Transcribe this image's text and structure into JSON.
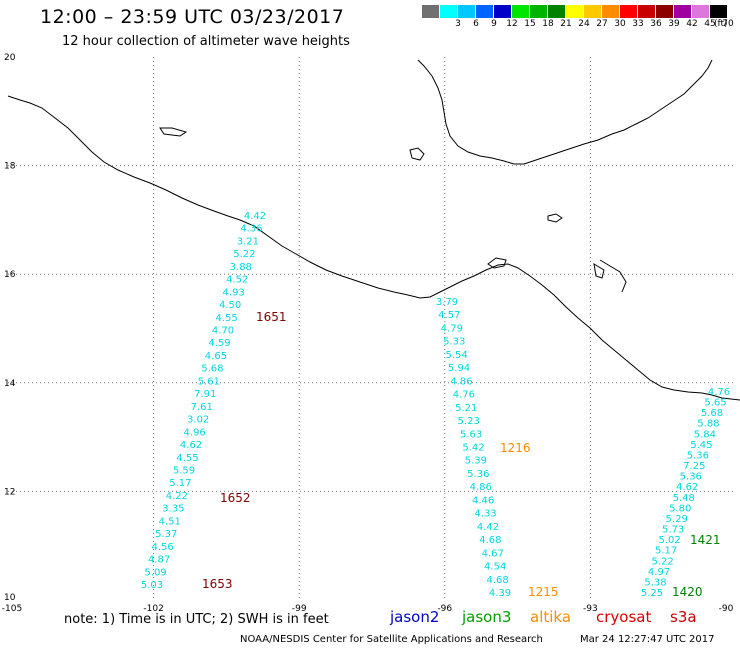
{
  "header": {
    "title": "12:00 – 23:59 UTC 03/23/2017",
    "subtitle": "12 hour collection of altimeter wave heights"
  },
  "legend": {
    "bins": [
      {
        "label": "",
        "color": "#707070"
      },
      {
        "label": "3",
        "color": "#00ffff"
      },
      {
        "label": "6",
        "color": "#00c8ff"
      },
      {
        "label": "9",
        "color": "#0064ff"
      },
      {
        "label": "12",
        "color": "#0000c8"
      },
      {
        "label": "15",
        "color": "#00e600"
      },
      {
        "label": "18",
        "color": "#00b400"
      },
      {
        "label": "21",
        "color": "#008200"
      },
      {
        "label": "24",
        "color": "#ffff00"
      },
      {
        "label": "27",
        "color": "#ffc800"
      },
      {
        "label": "30",
        "color": "#ff8c00"
      },
      {
        "label": "33",
        "color": "#ff0000"
      },
      {
        "label": "36",
        "color": "#c80000"
      },
      {
        "label": "39",
        "color": "#8c0000"
      },
      {
        "label": "42",
        "color": "#a000a0"
      },
      {
        "label": "45",
        "color": "#dc78dc"
      },
      {
        "label": "70",
        "color": "#000000"
      }
    ],
    "unit": "(ft)"
  },
  "map": {
    "lon_range": [
      -105,
      -90
    ],
    "lat_range": [
      10,
      20
    ],
    "lon_ticks": [
      "-105",
      "-102",
      "-99",
      "-96",
      "-93",
      "-90"
    ],
    "lat_ticks": [
      "20",
      "18",
      "16",
      "14",
      "12",
      "10"
    ],
    "track_color": "#00d8e0",
    "tracks": [
      {
        "satellite": "cryosat",
        "pass_times": [
          {
            "text": "1651",
            "color": "#800000"
          },
          {
            "text": "1652",
            "color": "#800000"
          },
          {
            "text": "1653",
            "color": "#800000"
          }
        ],
        "values": [
          "4.42",
          "4.36",
          "3.21",
          "5.22",
          "3.88",
          "4.52",
          "4.93",
          "4.50",
          "4.55",
          "4.70",
          "4.59",
          "4.65",
          "5.68",
          "5.61",
          "7.91",
          "7.61",
          "3.02",
          "4.96",
          "4.62",
          "4.55",
          "5.59",
          "5.17",
          "4.22",
          "3.35",
          "4.51",
          "5.37",
          "4.56",
          "4.87",
          "5.09",
          "5.03"
        ]
      },
      {
        "satellite": "altika",
        "pass_times": [
          {
            "text": "1216",
            "color": "#ff8c00"
          },
          {
            "text": "1215",
            "color": "#ff8c00"
          }
        ],
        "values": [
          "3.79",
          "4.57",
          "4.79",
          "5.33",
          "5.54",
          "5.94",
          "4.86",
          "4.76",
          "5.21",
          "5.23",
          "5.63",
          "5.42",
          "5.39",
          "5.36",
          "4.86",
          "4.46",
          "4.33",
          "4.42",
          "4.68",
          "4.67",
          "4.54",
          "4.68",
          "4.39"
        ]
      },
      {
        "satellite": "jason3",
        "pass_times": [
          {
            "text": "1421",
            "color": "#008200"
          },
          {
            "text": "1420",
            "color": "#008200"
          }
        ],
        "values": [
          "4.76",
          "5.65",
          "5.68",
          "5.88",
          "5.84",
          "5.45",
          "5.36",
          "7.25",
          "5.36",
          "4.62",
          "5.48",
          "5.80",
          "5.29",
          "5.73",
          "5.02",
          "5.17",
          "5.22",
          "4.97",
          "5.38",
          "5.25"
        ]
      }
    ]
  },
  "footer": {
    "note": "note: 1) Time is in UTC; 2) SWH is in feet",
    "satellites": [
      {
        "name": "jason2",
        "color": "#0000c8"
      },
      {
        "name": "jason3",
        "color": "#00a000"
      },
      {
        "name": "altika",
        "color": "#ff8c00"
      },
      {
        "name": "cryosat",
        "color": "#e00000"
      },
      {
        "name": "s3a",
        "color": "#c80000"
      }
    ],
    "credit": "NOAA/NESDIS Center for Satellite Applications and Research",
    "timestamp": "Mar 24 12:27:47 UTC 2017"
  }
}
